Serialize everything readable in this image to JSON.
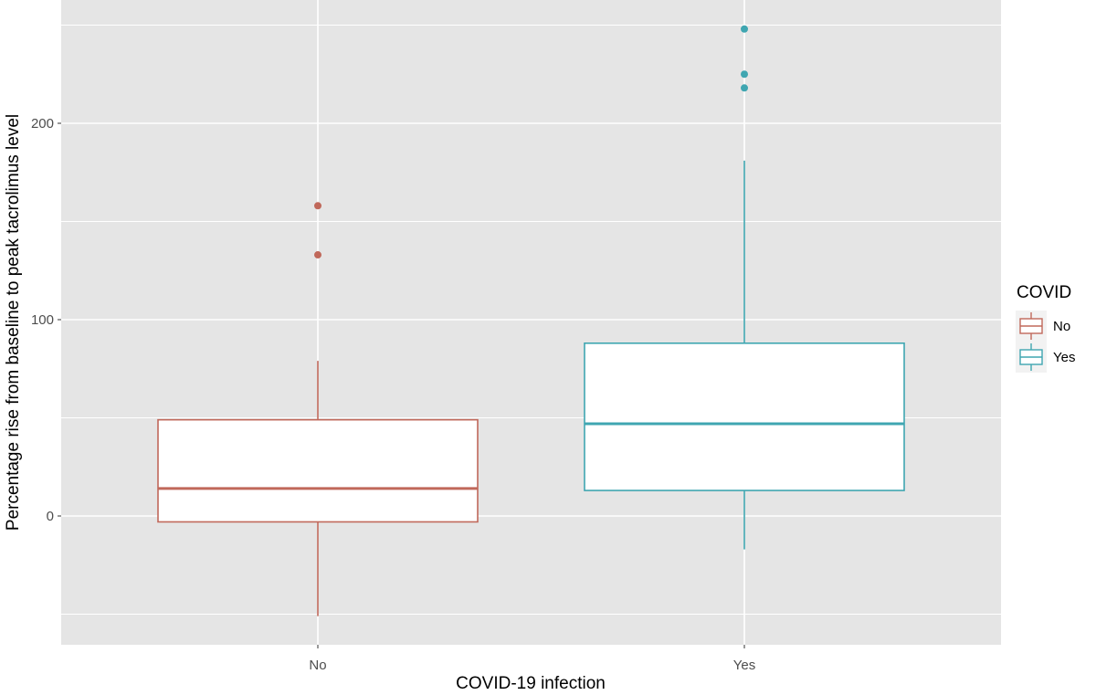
{
  "chart_data": {
    "type": "box",
    "xlabel": "COVID-19 infection",
    "ylabel": "Percentage rise from baseline to peak tacrolimus level",
    "categories": [
      "No",
      "Yes"
    ],
    "ylim": [
      -65,
      250
    ],
    "y_ticks": [
      0,
      100,
      200
    ],
    "grid": true,
    "legend": {
      "title": "COVID",
      "placement": "right",
      "entries": [
        "No",
        "Yes"
      ]
    },
    "colors": {
      "No": "#c0685a",
      "Yes": "#3fa6b1"
    },
    "panel_background": "#e5e5e5",
    "series": [
      {
        "name": "No",
        "whisker_low": -51,
        "q1": -3,
        "median": 14,
        "q3": 49,
        "whisker_high": 79,
        "outliers": [
          133,
          158
        ]
      },
      {
        "name": "Yes",
        "whisker_low": -17,
        "q1": 13,
        "median": 47,
        "q3": 88,
        "whisker_high": 181,
        "outliers": [
          218,
          225,
          248
        ]
      }
    ]
  }
}
